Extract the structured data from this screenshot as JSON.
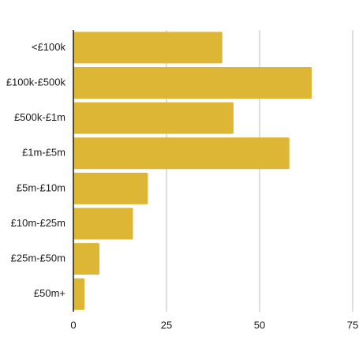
{
  "chart_data": {
    "type": "bar",
    "orientation": "horizontal",
    "categories": [
      "<£100k",
      "£100k-£500k",
      "£500k-£1m",
      "£1m-£5m",
      "£5m-£10m",
      "£10m-£25m",
      "£25m-£50m",
      "£50m+"
    ],
    "values": [
      40,
      64,
      43,
      58,
      20,
      16,
      7,
      3
    ],
    "xlim": [
      0,
      75
    ],
    "xticks": [
      0,
      25,
      50,
      75
    ],
    "title": "",
    "xlabel": "",
    "ylabel": "",
    "grid": "vertical",
    "legend": "none",
    "colors": {
      "bar": "#dcb634",
      "grid": "#c8c8c8",
      "axis": "#1a1a1a"
    }
  }
}
